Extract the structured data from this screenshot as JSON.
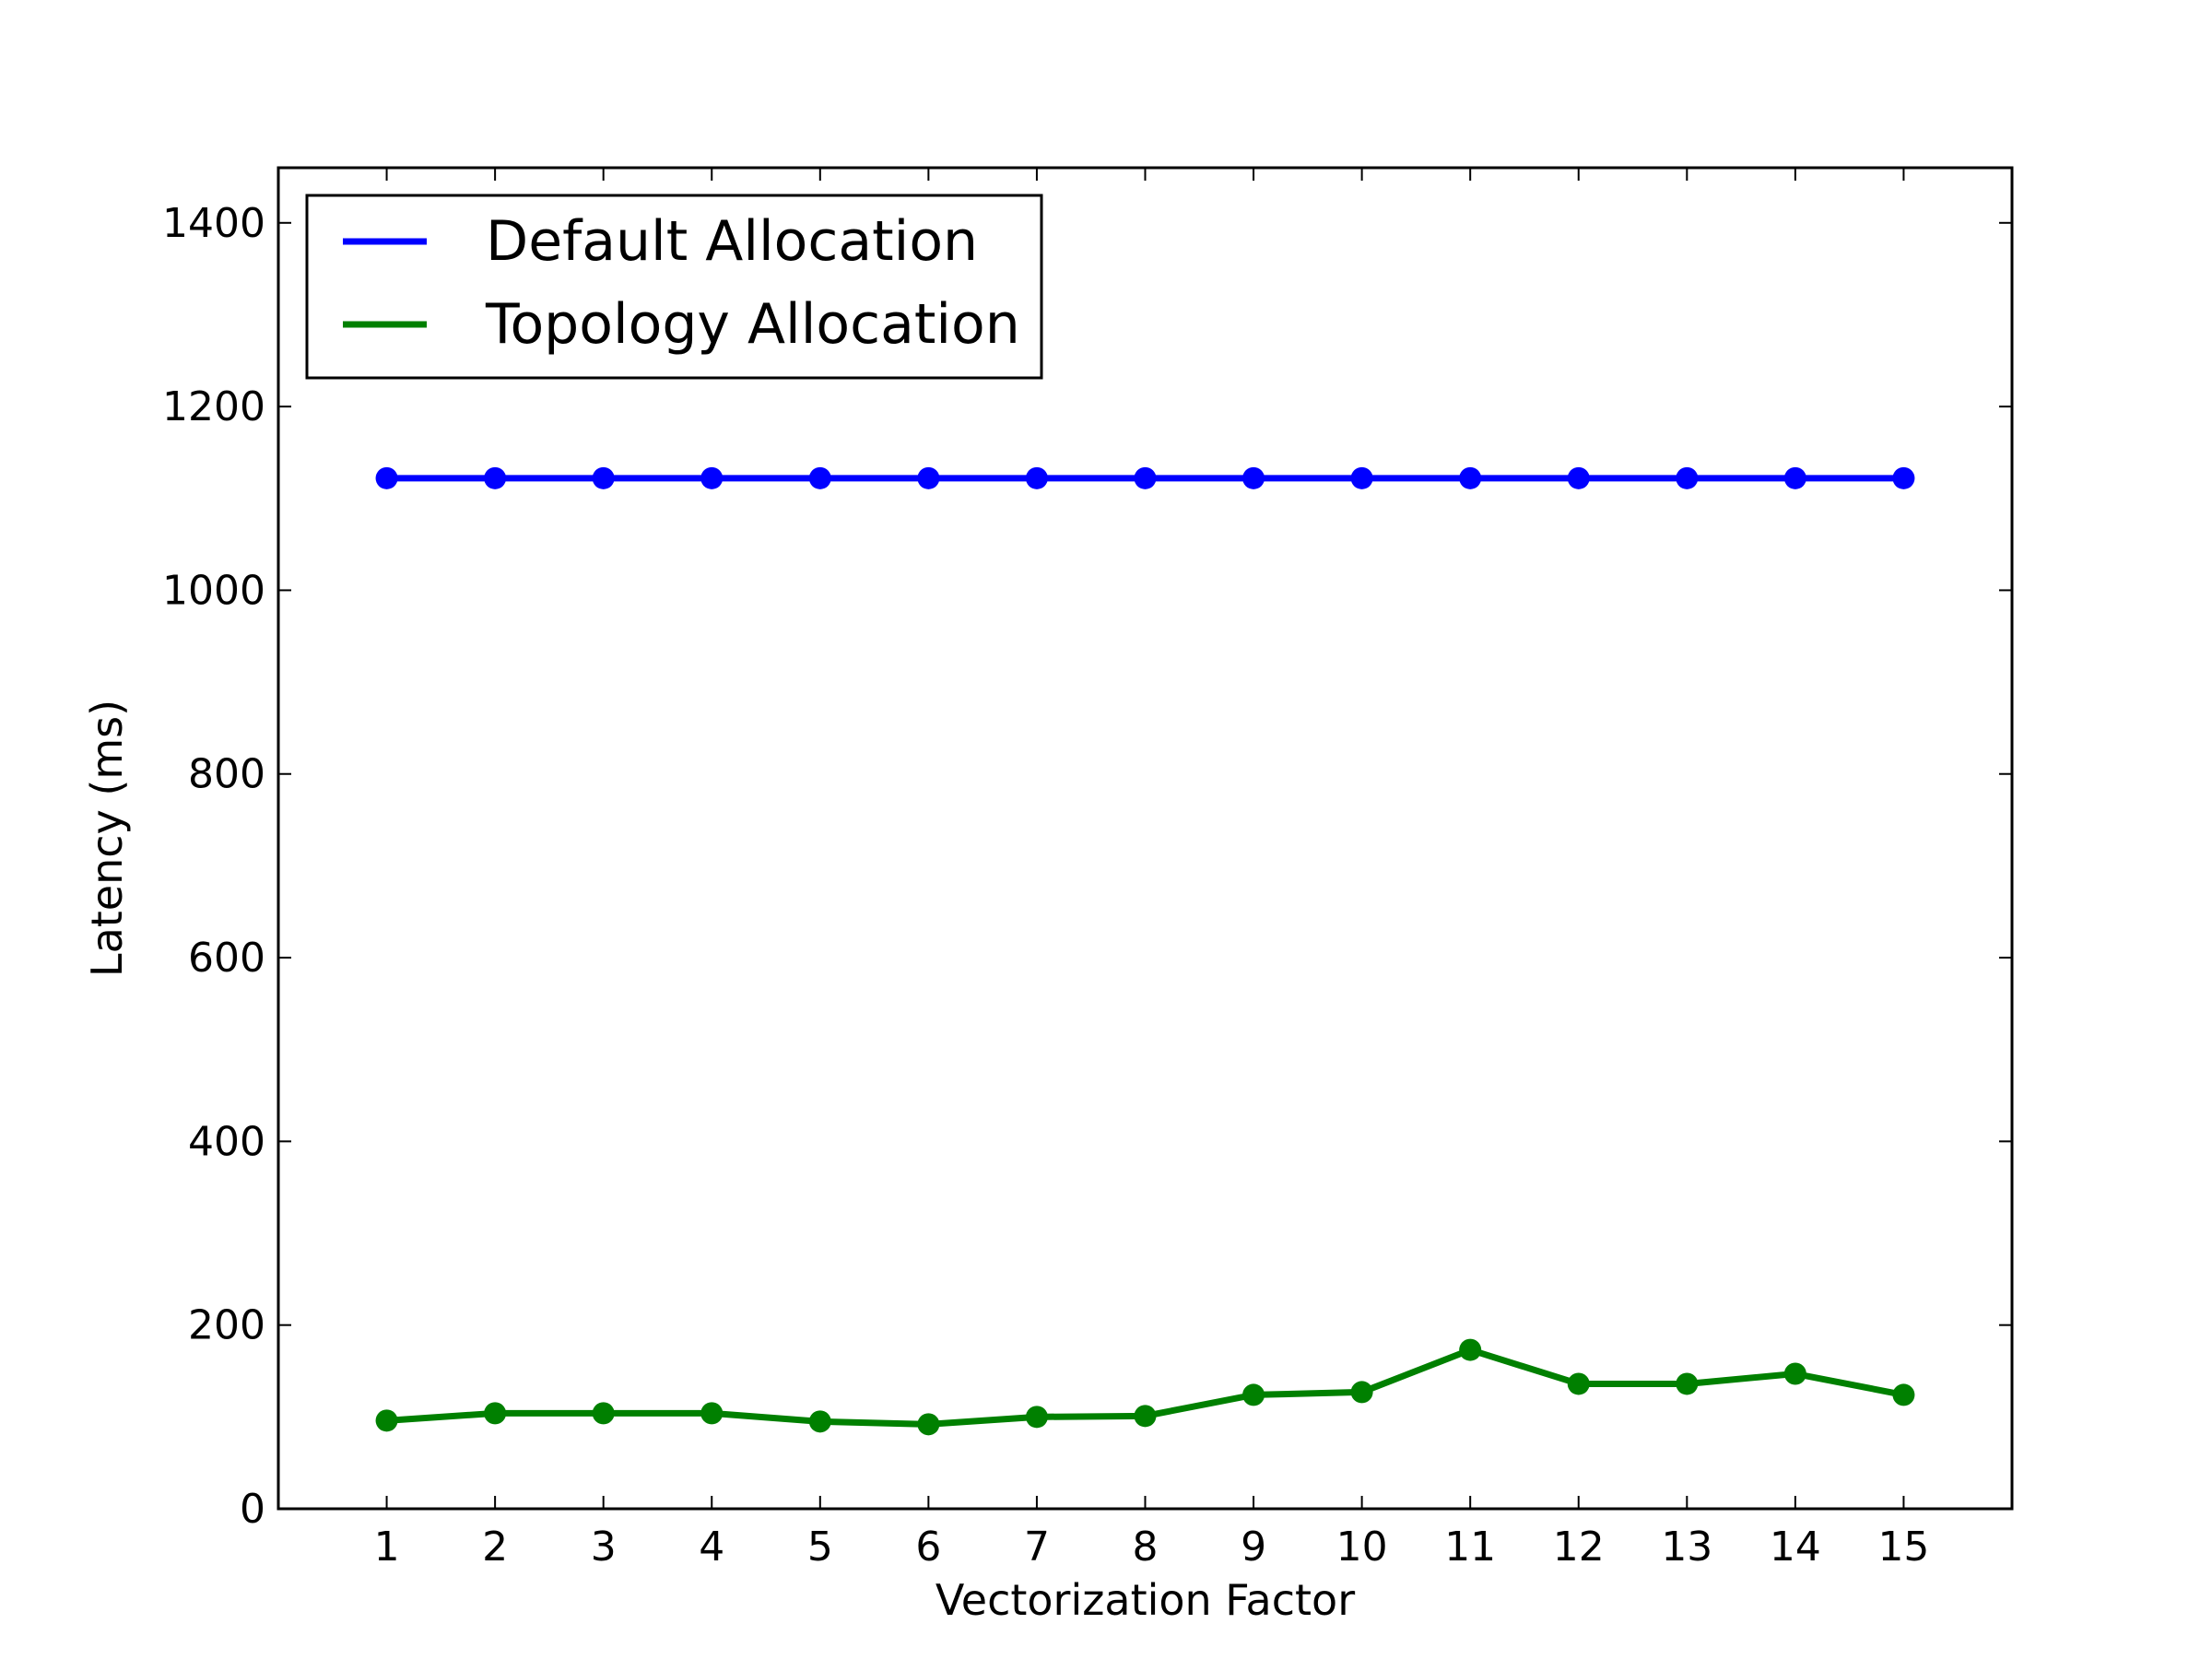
{
  "chart_data": {
    "type": "line",
    "title": "",
    "xlabel": "Vectorization Factor",
    "ylabel": "Latency (ms)",
    "xlim": [
      0,
      16
    ],
    "ylim": [
      0,
      1460
    ],
    "x": [
      1,
      2,
      3,
      4,
      5,
      6,
      7,
      8,
      9,
      10,
      11,
      12,
      13,
      14,
      15
    ],
    "xticks": [
      1,
      2,
      3,
      4,
      5,
      6,
      7,
      8,
      9,
      10,
      11,
      12,
      13,
      14,
      15
    ],
    "yticks": [
      0,
      200,
      400,
      600,
      800,
      1000,
      1200,
      1400
    ],
    "grid": false,
    "legend_position": "top-left",
    "series": [
      {
        "name": "Default Allocation",
        "color": "#0000ff",
        "values": [
          1122,
          1122,
          1122,
          1122,
          1122,
          1122,
          1122,
          1122,
          1122,
          1122,
          1122,
          1122,
          1122,
          1122,
          1122
        ]
      },
      {
        "name": "Topology Allocation",
        "color": "#008000",
        "values": [
          96,
          104,
          104,
          104,
          95,
          92,
          100,
          101,
          124,
          127,
          173,
          136,
          136,
          147,
          124
        ]
      }
    ]
  }
}
